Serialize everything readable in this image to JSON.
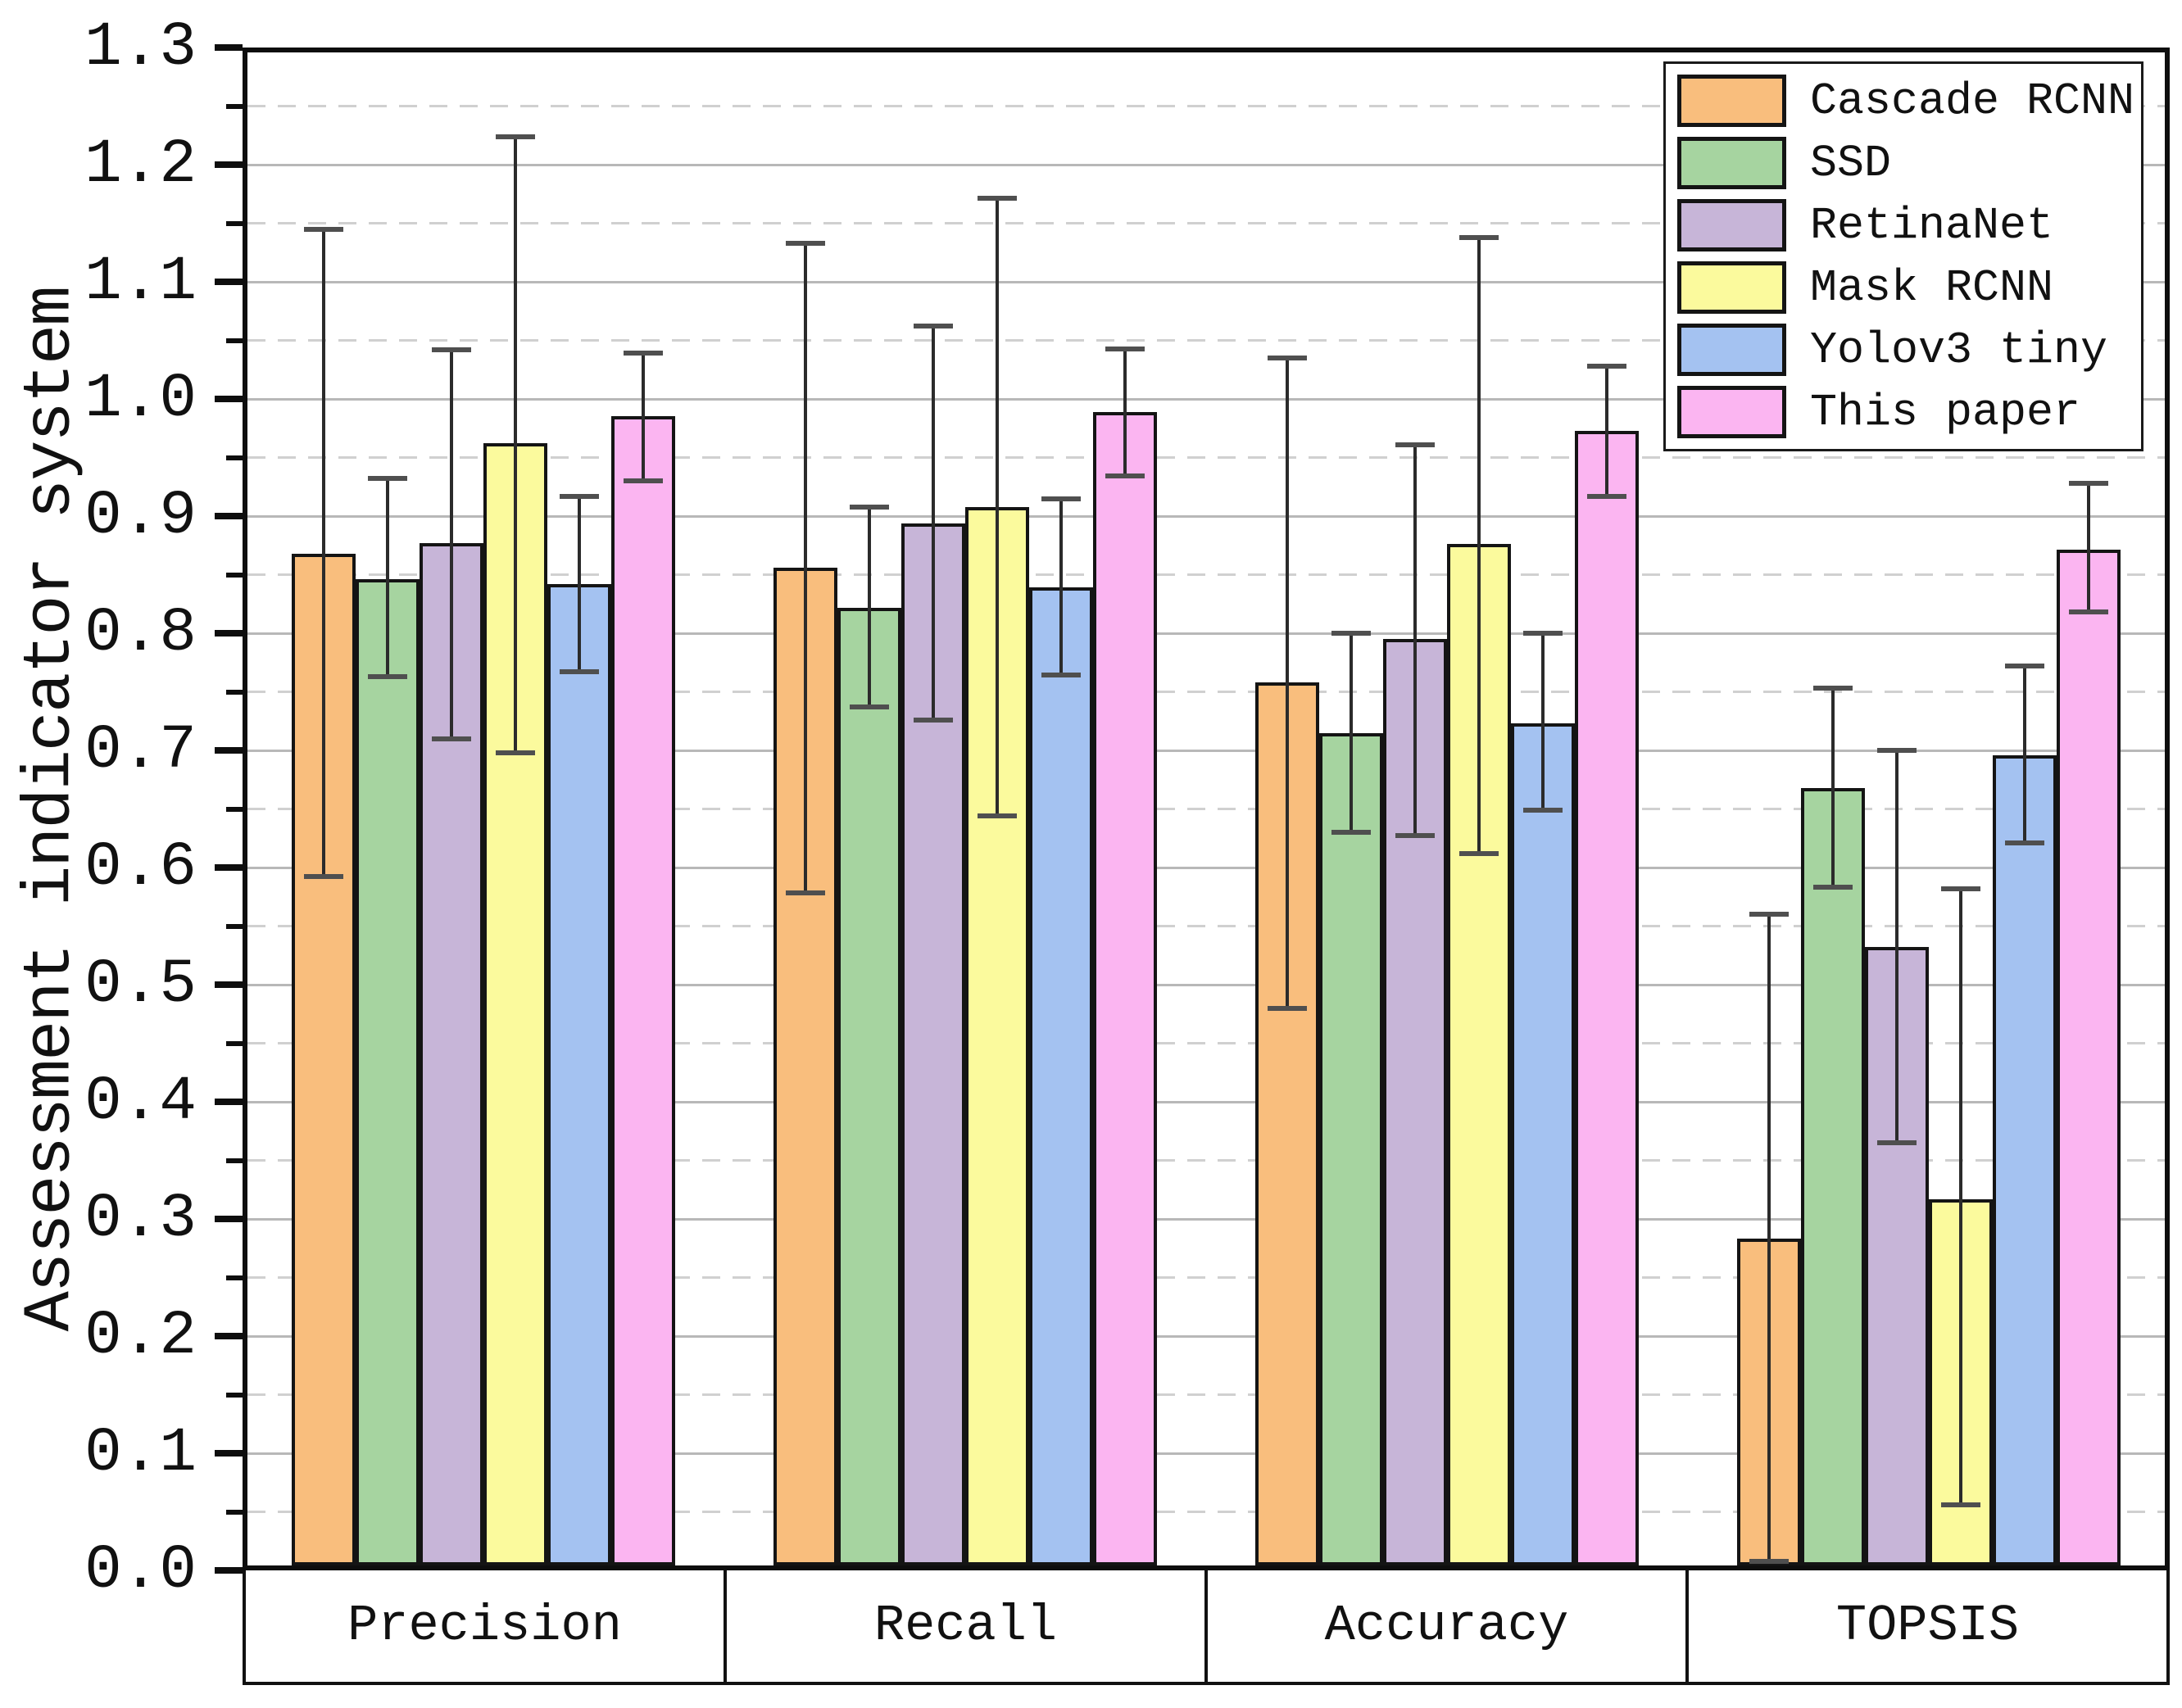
{
  "figure": {
    "y_axis_title": "Assessment indicator system"
  },
  "axis": {
    "ymin": 0.0,
    "ymax": 1.3,
    "major_step": 0.1,
    "minor_step": 0.05,
    "tick_labels": [
      "0.0",
      "0.1",
      "0.2",
      "0.3",
      "0.4",
      "0.5",
      "0.6",
      "0.7",
      "0.8",
      "0.9",
      "1.0",
      "1.1",
      "1.2",
      "1.3"
    ]
  },
  "chart_data": {
    "type": "bar",
    "title": "",
    "xlabel": "",
    "ylabel": "Assessment indicator system",
    "ylim": [
      0.0,
      1.3
    ],
    "grid": {
      "major": "solid lines at 0.1 steps",
      "minor": "dashed lines at 0.05 steps"
    },
    "legend_position": "upper right",
    "error_bars": true,
    "categories": [
      "Precision",
      "Recall",
      "Accuracy",
      "TOPSIS"
    ],
    "series": [
      {
        "name": "Cascade RCNN",
        "color": "#F9BE7D",
        "values": [
          0.868,
          0.856,
          0.758,
          0.283
        ],
        "err_low": [
          0.592,
          0.578,
          0.48,
          0.008
        ],
        "err_high": [
          1.145,
          1.133,
          1.035,
          0.56
        ]
      },
      {
        "name": "SSD",
        "color": "#A6D4A0",
        "values": [
          0.846,
          0.822,
          0.715,
          0.668
        ],
        "err_low": [
          0.763,
          0.737,
          0.63,
          0.583
        ],
        "err_high": [
          0.932,
          0.908,
          0.8,
          0.753
        ]
      },
      {
        "name": "RetinaNet",
        "color": "#C7B5D8",
        "values": [
          0.877,
          0.894,
          0.795,
          0.532
        ],
        "err_low": [
          0.71,
          0.726,
          0.627,
          0.365
        ],
        "err_high": [
          1.042,
          1.062,
          0.961,
          0.7
        ]
      },
      {
        "name": "Mask RCNN",
        "color": "#FBFA9D",
        "values": [
          0.962,
          0.908,
          0.876,
          0.317
        ],
        "err_low": [
          0.698,
          0.644,
          0.612,
          0.056
        ],
        "err_high": [
          1.224,
          1.171,
          1.138,
          0.582
        ]
      },
      {
        "name": "Yolov3 tiny",
        "color": "#A4C2F1",
        "values": [
          0.842,
          0.839,
          0.723,
          0.696
        ],
        "err_low": [
          0.767,
          0.764,
          0.649,
          0.621
        ],
        "err_high": [
          0.917,
          0.915,
          0.8,
          0.772
        ]
      },
      {
        "name": "This paper",
        "color": "#FBB5F1",
        "values": [
          0.985,
          0.989,
          0.973,
          0.871
        ],
        "err_low": [
          0.93,
          0.934,
          0.917,
          0.818
        ],
        "err_high": [
          1.039,
          1.043,
          1.028,
          0.928
        ]
      }
    ]
  },
  "style": {
    "background": "#ffffff",
    "bar_edge": "#141414",
    "frame": "#0e0e0e",
    "grid_major": "#b8b8b8",
    "grid_minor": "#d0d0d0",
    "error_line": "#2b2b2b",
    "error_cap": "#4f4f4f",
    "text": "#111111"
  }
}
